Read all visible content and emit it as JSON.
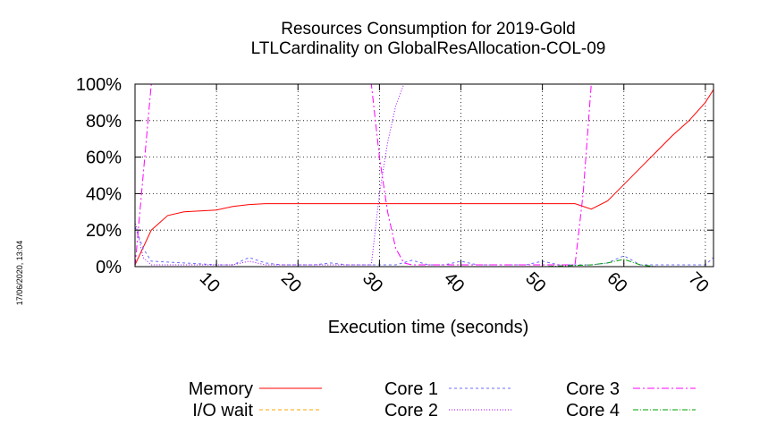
{
  "timestamp": "17/06/2020, 13:04",
  "chart_data": {
    "type": "line",
    "title": [
      "Resources Consumption for 2019-Gold",
      "LTLCardinality on GlobalResAllocation-COL-09"
    ],
    "xlabel": "Execution time (seconds)",
    "ylabel": "",
    "xlim": [
      0,
      71
    ],
    "ylim": [
      0,
      100
    ],
    "x_ticks": [
      10,
      20,
      30,
      40,
      50,
      60,
      70
    ],
    "y_ticks": [
      "0%",
      "20%",
      "40%",
      "60%",
      "80%",
      "100%"
    ],
    "y_tick_values": [
      0,
      20,
      40,
      60,
      80,
      100
    ],
    "grid": true,
    "legend_placement": "bottom",
    "series": [
      {
        "name": "Memory",
        "color": "#ff0000",
        "dash": "",
        "x": [
          0,
          2,
          4,
          6,
          8,
          10,
          12,
          14,
          16,
          18,
          20,
          30,
          40,
          50,
          54,
          56,
          58,
          60,
          62,
          64,
          66,
          68,
          70,
          71
        ],
        "y": [
          1,
          20,
          28,
          30,
          30.5,
          31,
          33,
          34,
          34.5,
          34.5,
          34.5,
          34.5,
          34.5,
          34.5,
          34.5,
          31.5,
          36,
          45,
          54,
          63,
          72,
          80,
          90,
          97
        ]
      },
      {
        "name": "I/O wait",
        "color": "#ffa500",
        "dash": "4,3",
        "x": [
          0,
          71
        ],
        "y": [
          0,
          0
        ]
      },
      {
        "name": "Core 1",
        "color": "#6c6cff",
        "dash": "3,3",
        "x": [
          0,
          1,
          2,
          4,
          6,
          8,
          10,
          12,
          14,
          16,
          18,
          20,
          22,
          24,
          26,
          28,
          30,
          32,
          34,
          36,
          38,
          40,
          42,
          44,
          46,
          48,
          50,
          52,
          54,
          56,
          58,
          60,
          62,
          64,
          66,
          68,
          70,
          71
        ],
        "y": [
          22,
          10,
          3,
          2.5,
          2,
          1.5,
          1,
          1,
          5,
          2,
          1,
          1,
          1,
          2,
          1,
          1,
          1,
          1,
          3.5,
          1,
          1,
          3,
          1,
          1,
          1,
          1,
          3,
          1,
          1,
          1,
          2,
          6,
          1,
          1,
          1,
          1,
          1,
          5
        ]
      },
      {
        "name": "Core 2",
        "color": "#a000ff",
        "dash": "1,2",
        "x": [
          0,
          1,
          2,
          4,
          6,
          8,
          10,
          12,
          14,
          16,
          18,
          20,
          22,
          24,
          26,
          28,
          29,
          30,
          31,
          32,
          33,
          34,
          36,
          38,
          40,
          42,
          44,
          46,
          48,
          50,
          52,
          54,
          56,
          58,
          60,
          62,
          64,
          66,
          68,
          70,
          71
        ],
        "y": [
          25,
          5,
          1,
          1,
          1,
          1,
          1,
          1,
          3,
          1,
          1,
          1,
          1,
          1,
          1,
          1,
          1,
          40,
          68,
          88,
          100,
          100,
          100,
          100,
          100,
          100,
          100,
          100,
          100,
          100,
          100,
          100,
          100,
          100,
          100,
          100,
          100,
          100,
          100,
          100,
          100
        ]
      },
      {
        "name": "Core 3",
        "color": "#ff00ff",
        "dash": "8,3,2,3",
        "x": [
          0,
          2,
          4,
          10,
          20,
          28,
          29,
          30,
          31,
          32,
          33,
          34,
          36,
          40,
          50,
          54,
          55,
          56,
          57,
          58,
          60,
          64,
          68,
          70,
          71
        ],
        "y": [
          0,
          100,
          100,
          100,
          100,
          100,
          100,
          60,
          30,
          10,
          2,
          1,
          1,
          1,
          1,
          1,
          40,
          100,
          100,
          100,
          100,
          100,
          100,
          100,
          100
        ]
      },
      {
        "name": "Core 4",
        "color": "#00a000",
        "dash": "6,2,1,2",
        "x": [
          0,
          10,
          20,
          30,
          40,
          50,
          56,
          58,
          60,
          62,
          64,
          70,
          71
        ],
        "y": [
          0,
          0,
          0,
          0,
          0,
          0,
          1,
          2,
          4,
          1,
          0,
          0,
          0
        ]
      }
    ]
  }
}
